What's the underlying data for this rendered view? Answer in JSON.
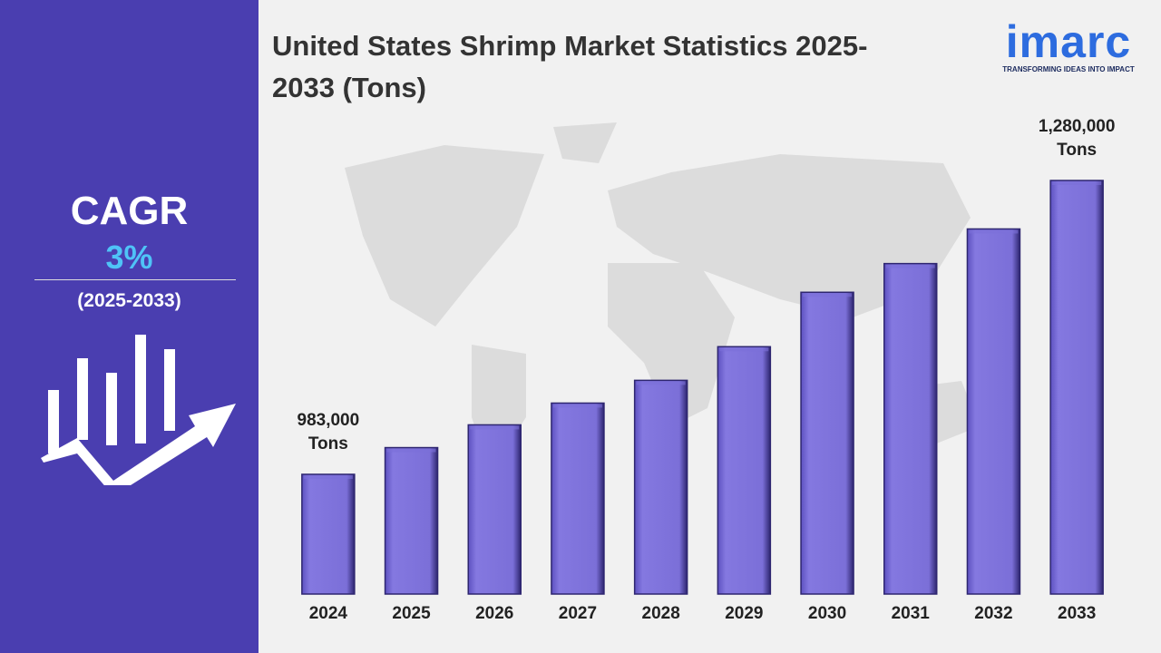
{
  "chart_data": {
    "type": "bar",
    "title": "United States Shrimp Market Statistics 2025-2033 (Tons)",
    "categories": [
      "2024",
      "2025",
      "2026",
      "2027",
      "2028",
      "2029",
      "2030",
      "2031",
      "2032",
      "2033"
    ],
    "values": [
      983000,
      1010000,
      1033000,
      1055000,
      1078000,
      1112000,
      1167000,
      1196000,
      1231000,
      1280000
    ],
    "value_labels": [
      "983,000 Tons",
      null,
      null,
      null,
      null,
      null,
      null,
      null,
      null,
      "1,280,000 Tons"
    ],
    "color": "#7b6fd8",
    "ylim": [
      862000,
      1280000
    ]
  },
  "cagr_label": "CAGR",
  "cagr_value": "3%",
  "cagr_period": "(2025-2033)",
  "logo": "imarc",
  "tagline": "TRANSFORMING IDEAS INTO IMPACT"
}
